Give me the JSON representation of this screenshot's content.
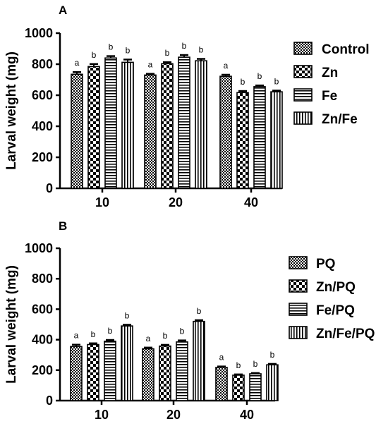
{
  "chart_data": [
    {
      "type": "bar",
      "panel_letter": "A",
      "ylabel": "Larval weight (mg)",
      "ylim": [
        0,
        1000
      ],
      "yticks": [
        "0",
        "200",
        "400",
        "600",
        "800",
        "1000"
      ],
      "categories": [
        "10",
        "20",
        "40"
      ],
      "legend_position": "right",
      "series": [
        {
          "name": "Control",
          "pattern": "checker",
          "values": [
            735,
            730,
            722
          ],
          "errors": [
            14,
            8,
            10
          ],
          "labels": [
            "a",
            "a",
            "a"
          ]
        },
        {
          "name": "Zn",
          "pattern": "checker-large",
          "values": [
            785,
            803,
            617
          ],
          "errors": [
            16,
            10,
            10
          ],
          "labels": [
            "b",
            "b",
            "b"
          ]
        },
        {
          "name": "Fe",
          "pattern": "horizontal",
          "values": [
            840,
            845,
            655
          ],
          "errors": [
            12,
            14,
            8
          ],
          "labels": [
            "b",
            "b",
            "b"
          ]
        },
        {
          "name": "Zn/Fe",
          "pattern": "vertical",
          "values": [
            812,
            822,
            622
          ],
          "errors": [
            18,
            12,
            8
          ],
          "labels": [
            "b",
            "b",
            "b"
          ]
        }
      ]
    },
    {
      "type": "bar",
      "panel_letter": "B",
      "ylabel": "Larval weight (mg)",
      "ylim": [
        0,
        1000
      ],
      "yticks": [
        "0",
        "200",
        "400",
        "600",
        "800",
        "1000"
      ],
      "categories": [
        "10",
        "20",
        "40"
      ],
      "legend_position": "right",
      "series": [
        {
          "name": "PQ",
          "pattern": "checker",
          "values": [
            355,
            340,
            218
          ],
          "errors": [
            12,
            8,
            6
          ],
          "labels": [
            "a",
            "a",
            "a"
          ]
        },
        {
          "name": "Zn/PQ",
          "pattern": "checker-large",
          "values": [
            368,
            358,
            167
          ],
          "errors": [
            8,
            8,
            5
          ],
          "labels": [
            "b",
            "b",
            "b"
          ]
        },
        {
          "name": "Fe/PQ",
          "pattern": "horizontal",
          "values": [
            390,
            385,
            176
          ],
          "errors": [
            8,
            10,
            5
          ],
          "labels": [
            "b",
            "b",
            "b"
          ]
        },
        {
          "name": "Zn/Fe/PQ",
          "pattern": "vertical",
          "values": [
            490,
            520,
            235
          ],
          "errors": [
            8,
            8,
            6
          ],
          "labels": [
            "b",
            "b",
            "b"
          ]
        }
      ]
    }
  ]
}
